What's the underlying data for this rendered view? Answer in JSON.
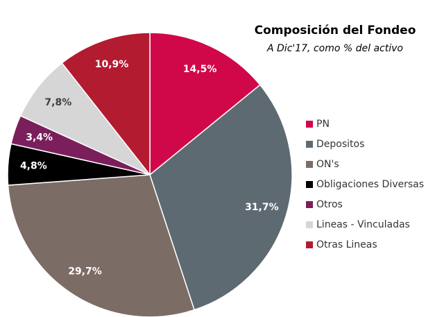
{
  "chart_data": {
    "type": "pie",
    "title": "Composición del Fondeo",
    "subtitle": "A Dic'17, como % del activo",
    "categories": [
      "PN",
      "Depositos",
      "ON's",
      "Obligaciones Diversas",
      "Otros",
      "Lineas - Vinculadas",
      "Otras Lineas"
    ],
    "values": [
      14.5,
      31.7,
      29.7,
      4.8,
      3.4,
      7.8,
      10.9
    ],
    "value_labels": [
      "14,5%",
      "31,7%",
      "29,7%",
      "4,8%",
      "3,4%",
      "7,8%",
      "10,9%"
    ],
    "colors": [
      "#d0084a",
      "#5e6a72",
      "#7b6c66",
      "#000000",
      "#7a1f5c",
      "#d6d6d6",
      "#b31b31"
    ],
    "legend": "right"
  }
}
